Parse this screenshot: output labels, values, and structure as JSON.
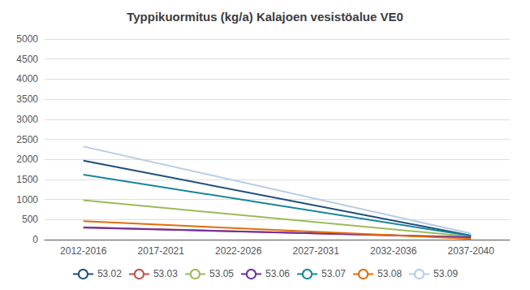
{
  "chart_data": {
    "type": "line",
    "title": "Typpikuormitus (kg/a) Kalajoen vesistöalue VE0",
    "categories": [
      "2012-2016",
      "2017-2021",
      "2022-2026",
      "2027-2031",
      "2032-2036",
      "2037-2040"
    ],
    "series": [
      {
        "name": "53.02",
        "color": "#1F4E79",
        "values": [
          1970,
          null,
          null,
          null,
          null,
          100
        ]
      },
      {
        "name": "53.03",
        "color": "#C0504D",
        "values": [
          310,
          null,
          null,
          null,
          null,
          55
        ]
      },
      {
        "name": "53.05",
        "color": "#9BBB59",
        "values": [
          980,
          null,
          null,
          null,
          null,
          75
        ]
      },
      {
        "name": "53.06",
        "color": "#7030A0",
        "values": [
          300,
          null,
          null,
          null,
          null,
          60
        ]
      },
      {
        "name": "53.07",
        "color": "#17869A",
        "values": [
          1620,
          null,
          null,
          null,
          null,
          95
        ]
      },
      {
        "name": "53.08",
        "color": "#E36C09",
        "values": [
          460,
          null,
          null,
          null,
          null,
          20
        ]
      },
      {
        "name": "53.09",
        "color": "#B8CCE4",
        "values": [
          2320,
          null,
          null,
          null,
          null,
          150
        ]
      }
    ],
    "ylim": [
      0,
      5000
    ],
    "yticks": [
      0,
      500,
      1000,
      1500,
      2000,
      2500,
      3000,
      3500,
      4000,
      4500,
      5000
    ],
    "grid": true,
    "legend": "bottom"
  }
}
